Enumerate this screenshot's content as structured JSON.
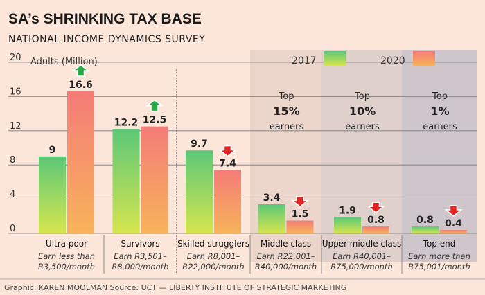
{
  "title": "SA’s SHRINKING TAX BASE",
  "subtitle": "NATIONAL INCOME DYNAMICS SURVEY",
  "source": "Graphic: KAREN MOOLMAN  Source: UCT — LIBERTY INSTITUTE OF STRATEGIC MARKETING",
  "colors": {
    "bg": "#fbe6d9",
    "green_top": "#5cc878",
    "green_bottom": "#d6e54e",
    "orange_top": "#f47c78",
    "orange_bottom": "#f7b35a",
    "arrow_up": "#2aa84a",
    "arrow_down": "#e02424",
    "shade_1": "#ecd6cb",
    "shade_2": "#dfd0cc",
    "shade_3": "#cfc6cc"
  },
  "chart_data": {
    "type": "bar",
    "title": "SA’s SHRINKING TAX BASE",
    "ylabel": "Adults (Million)",
    "ylim": [
      0,
      20
    ],
    "yticks": [
      0,
      4,
      8,
      12,
      16,
      20
    ],
    "legend": [
      "2017",
      "2020"
    ],
    "legend_position": "top-right",
    "categories": [
      {
        "name": "Ultra poor",
        "note": [
          "Earn less than",
          "R3,500/month"
        ]
      },
      {
        "name": "Survivors",
        "note": [
          "Earn R3,501–",
          "R8,000/month"
        ]
      },
      {
        "name": "Skilled strugglers",
        "note": [
          "Earn R8,001–",
          "R22,000/month"
        ]
      },
      {
        "name": "Middle class",
        "note": [
          "Earn R22,001–",
          "R40,000/month"
        ]
      },
      {
        "name": "Upper-middle class",
        "note": [
          "Earn R40,001–",
          "R75,000/month"
        ]
      },
      {
        "name": "Top end",
        "note": [
          "Earn more than",
          "R75,001/month"
        ]
      }
    ],
    "series": [
      {
        "name": "2017",
        "values": [
          9,
          12.2,
          9.7,
          3.4,
          1.9,
          0.8
        ],
        "labels": [
          "9",
          "12.2",
          "9.7",
          "3.4",
          "1.9",
          "0.8"
        ]
      },
      {
        "name": "2020",
        "values": [
          16.6,
          12.5,
          7.4,
          1.5,
          0.8,
          0.4
        ],
        "labels": [
          "16.6",
          "12.5",
          "7.4",
          "1.5",
          "0.8",
          "0.4"
        ]
      }
    ],
    "trend": [
      "up",
      "up",
      "down",
      "down",
      "down",
      "down"
    ],
    "top_earners": [
      {
        "top": "Top",
        "pct": "15%",
        "earners": "earners"
      },
      {
        "top": "Top",
        "pct": "10%",
        "earners": "earners"
      },
      {
        "top": "Top",
        "pct": "1%",
        "earners": "earners"
      }
    ]
  }
}
